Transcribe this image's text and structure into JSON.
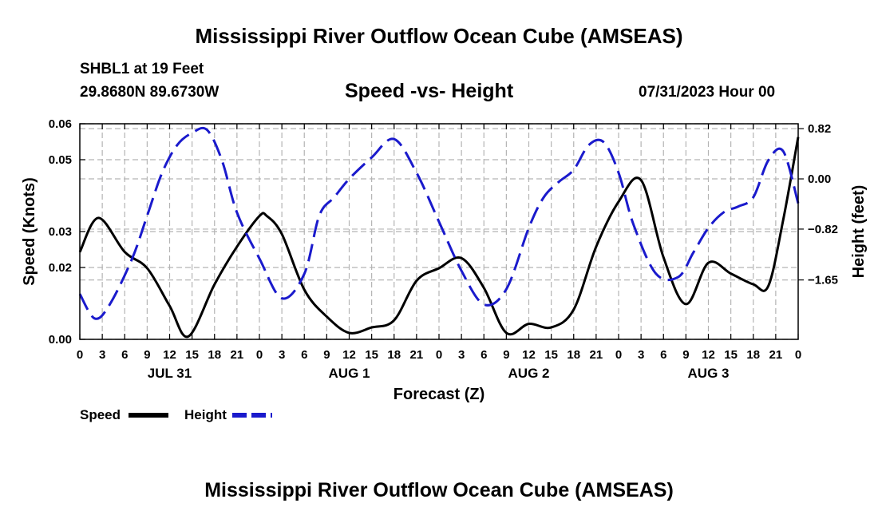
{
  "page": {
    "title": "Mississippi River Outflow Ocean Cube (AMSEAS)",
    "station": "SHBL1 at 19 Feet",
    "coords": "29.8680N  89.6730W",
    "chart_title": "Speed -vs- Height",
    "forecast_time": "07/31/2023 Hour 00",
    "footer_title": "Mississippi River Outflow Ocean Cube (AMSEAS)"
  },
  "colors": {
    "speed": "#000000",
    "height": "#1a1acc",
    "grid": "#b4b4b4"
  },
  "chart_data": {
    "type": "line",
    "title": "Speed -vs- Height",
    "xlabel": "Forecast (Z)",
    "ylabel": "Speed (Knots)",
    "y2label": "Height (feet)",
    "xlim": [
      0,
      96
    ],
    "ylim": [
      0,
      0.06
    ],
    "y2lim": [
      -2.62,
      0.9
    ],
    "x_ticks": [
      0,
      3,
      6,
      9,
      12,
      15,
      18,
      21,
      24,
      27,
      30,
      33,
      36,
      39,
      42,
      45,
      48,
      51,
      54,
      57,
      60,
      63,
      66,
      69,
      72,
      75,
      78,
      81,
      84,
      87,
      90,
      93,
      96
    ],
    "x_tick_labels": [
      "0",
      "3",
      "6",
      "9",
      "12",
      "15",
      "18",
      "21",
      "0",
      "3",
      "6",
      "9",
      "12",
      "15",
      "18",
      "21",
      "0",
      "3",
      "6",
      "9",
      "12",
      "15",
      "18",
      "21",
      "0",
      "3",
      "6",
      "9",
      "12",
      "15",
      "18",
      "21",
      "0"
    ],
    "day_labels": [
      {
        "x": 12,
        "label": "JUL 31"
      },
      {
        "x": 36,
        "label": "AUG 1"
      },
      {
        "x": 60,
        "label": "AUG 2"
      },
      {
        "x": 84,
        "label": "AUG 3"
      }
    ],
    "y_ticks": [
      0.0,
      0.02,
      0.03,
      0.05,
      0.06
    ],
    "y_tick_labels": [
      "0.00",
      "0.02",
      "0.03",
      "0.05",
      "0.06"
    ],
    "y2_ticks": [
      0.82,
      0.0,
      -0.82,
      -1.65
    ],
    "y2_tick_labels": [
      "0.82",
      "0.00",
      "−0.82",
      "−1.65"
    ],
    "grid": true,
    "series": [
      {
        "name": "Speed",
        "axis": "left",
        "style": "solid",
        "x": [
          0,
          2.5,
          6,
          9,
          12,
          14.5,
          18,
          21,
          24,
          25,
          27,
          30,
          33,
          36,
          39,
          42,
          45,
          48,
          51,
          54,
          57,
          60,
          63,
          66,
          69,
          72,
          75,
          78,
          81,
          84,
          87,
          90,
          92,
          94,
          96
        ],
        "y": [
          0.0243,
          0.0338,
          0.0243,
          0.0198,
          0.0093,
          0.0008,
          0.0153,
          0.0258,
          0.0343,
          0.0343,
          0.0293,
          0.0138,
          0.0063,
          0.0018,
          0.0033,
          0.0053,
          0.0163,
          0.0198,
          0.0226,
          0.0143,
          0.0018,
          0.0043,
          0.0033,
          0.0083,
          0.0258,
          0.0383,
          0.0443,
          0.0228,
          0.0098,
          0.0213,
          0.0183,
          0.0153,
          0.0148,
          0.0333,
          0.0563
        ]
      },
      {
        "name": "Height",
        "axis": "right",
        "style": "dashed",
        "x": [
          0,
          2,
          4,
          7,
          9,
          11,
          13,
          15,
          17,
          19,
          21,
          24,
          27,
          30,
          32,
          34,
          36,
          39,
          42,
          45,
          48,
          51,
          54,
          57,
          60,
          62,
          64,
          66,
          68,
          70,
          72,
          74,
          77,
          80,
          82,
          84,
          86,
          88,
          90,
          92,
          94,
          96
        ],
        "y": [
          -1.88,
          -2.28,
          -2.05,
          -1.3,
          -0.6,
          0.1,
          0.55,
          0.75,
          0.8,
          0.3,
          -0.55,
          -1.3,
          -1.95,
          -1.55,
          -0.6,
          -0.3,
          0.0,
          0.35,
          0.65,
          0.1,
          -0.7,
          -1.5,
          -2.05,
          -1.8,
          -0.8,
          -0.3,
          -0.05,
          0.15,
          0.55,
          0.6,
          0.1,
          -0.75,
          -1.55,
          -1.6,
          -1.2,
          -0.8,
          -0.55,
          -0.45,
          -0.3,
          0.3,
          0.45,
          -0.4
        ]
      }
    ],
    "legend": [
      {
        "label": "Speed",
        "style": "solid"
      },
      {
        "label": "Height",
        "style": "dashed"
      }
    ]
  }
}
